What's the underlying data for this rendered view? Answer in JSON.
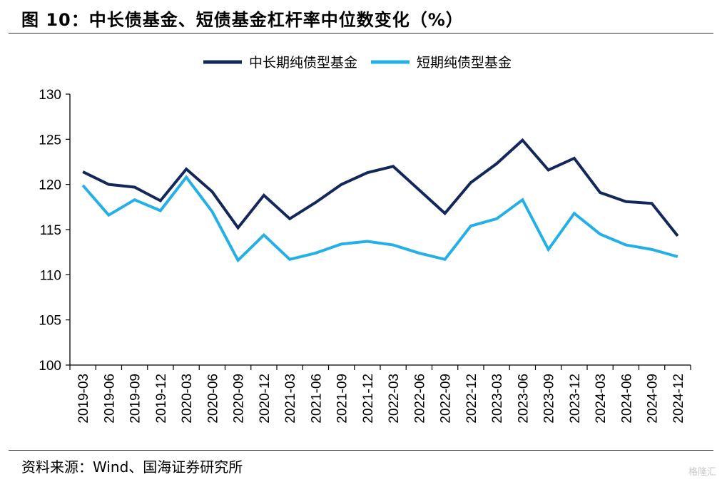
{
  "title": "图 10：中长债基金、短债基金杠杆率中位数变化（%）",
  "source": "资料来源：Wind、国海证券研究所",
  "watermark": "格隆汇",
  "colors": {
    "long": "#13285a",
    "short": "#23b0e6"
  },
  "chart_data": {
    "type": "line",
    "categories": [
      "2019-03",
      "2019-06",
      "2019-09",
      "2019-12",
      "2020-03",
      "2020-06",
      "2020-09",
      "2020-12",
      "2021-03",
      "2021-06",
      "2021-09",
      "2021-12",
      "2022-03",
      "2022-06",
      "2022-09",
      "2022-12",
      "2023-03",
      "2023-06",
      "2023-09",
      "2023-12",
      "2024-03",
      "2024-06",
      "2024-09",
      "2024-12"
    ],
    "series": [
      {
        "name": "中长期纯债型基金",
        "values": [
          121.4,
          120.0,
          119.7,
          118.2,
          121.7,
          119.2,
          115.2,
          118.8,
          116.2,
          118.0,
          120.0,
          121.3,
          122.0,
          119.4,
          116.8,
          120.2,
          122.3,
          124.9,
          121.6,
          122.9,
          119.1,
          118.1,
          117.9,
          114.3
        ]
      },
      {
        "name": "短期纯债型基金",
        "values": [
          119.9,
          116.6,
          118.3,
          117.1,
          120.8,
          117.0,
          111.6,
          114.4,
          111.7,
          112.4,
          113.4,
          113.7,
          113.3,
          112.4,
          111.7,
          115.4,
          116.2,
          118.3,
          112.8,
          116.8,
          114.5,
          113.3,
          112.8,
          112.0
        ]
      }
    ],
    "ylim": [
      100,
      130
    ],
    "yticks": [
      "100",
      "105",
      "110",
      "115",
      "120",
      "125",
      "130"
    ],
    "legend": "top",
    "grid": false
  }
}
